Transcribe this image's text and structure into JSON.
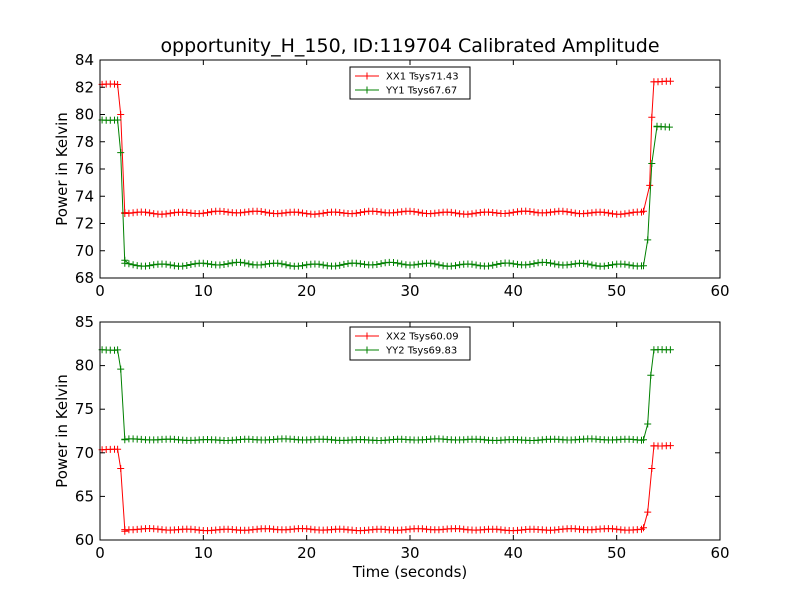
{
  "chart_data": {
    "title": "opportunity_H_150, ID:119704 Calibrated Amplitude",
    "xlabel": "Time (seconds)",
    "panels": [
      {
        "type": "line",
        "ylabel": "Power in Kelvin",
        "xlim": [
          0,
          60
        ],
        "ylim": [
          68,
          84
        ],
        "xticks": [
          0,
          10,
          20,
          30,
          40,
          50,
          60
        ],
        "yticks": [
          68,
          70,
          72,
          74,
          76,
          78,
          80,
          82,
          84
        ],
        "legend_position": "top-center",
        "series": [
          {
            "name": "XX1 Tsys71.43",
            "color": "#ff0000",
            "segments": [
              {
                "x0": 0.2,
                "x1": 1.7,
                "base": 82.2,
                "amp": 0.05
              },
              {
                "x0": 2.4,
                "x1": 52.6,
                "base": 72.8,
                "amp": 0.12
              },
              {
                "x0": 53.6,
                "x1": 55.3,
                "base": 82.4,
                "amp": 0.05
              }
            ],
            "transitions": [
              [
                1.7,
                82.2,
                2.0,
                80.0
              ],
              [
                2.0,
                80.0,
                2.4,
                72.8
              ],
              [
                52.6,
                72.9,
                53.2,
                74.8
              ],
              [
                53.2,
                74.8,
                53.4,
                79.8
              ],
              [
                53.4,
                79.8,
                53.6,
                82.4
              ]
            ]
          },
          {
            "name": "YY1 Tsys67.67",
            "color": "#008000",
            "segments": [
              {
                "x0": 0.2,
                "x1": 1.7,
                "base": 79.6,
                "amp": 0.05
              },
              {
                "x0": 2.4,
                "x1": 52.6,
                "base": 69.0,
                "amp": 0.15
              },
              {
                "x0": 53.9,
                "x1": 55.3,
                "base": 79.1,
                "amp": 0.05
              }
            ],
            "transitions": [
              [
                1.7,
                79.6,
                2.0,
                77.2
              ],
              [
                2.0,
                77.2,
                2.4,
                69.3
              ],
              [
                52.6,
                68.9,
                53.0,
                70.8
              ],
              [
                53.0,
                70.8,
                53.4,
                76.4
              ],
              [
                53.4,
                76.4,
                53.9,
                79.1
              ]
            ]
          }
        ]
      },
      {
        "type": "line",
        "ylabel": "Power in Kelvin",
        "xlim": [
          0,
          60
        ],
        "ylim": [
          60,
          85
        ],
        "xticks": [
          0,
          10,
          20,
          30,
          40,
          50,
          60
        ],
        "yticks": [
          60,
          65,
          70,
          75,
          80,
          85
        ],
        "legend_position": "top-center",
        "series": [
          {
            "name": "XX2 Tsys60.09",
            "color": "#ff0000",
            "segments": [
              {
                "x0": 0.2,
                "x1": 1.7,
                "base": 70.4,
                "amp": 0.05
              },
              {
                "x0": 2.4,
                "x1": 52.6,
                "base": 61.2,
                "amp": 0.12
              },
              {
                "x0": 53.6,
                "x1": 55.3,
                "base": 70.8,
                "amp": 0.05
              }
            ],
            "transitions": [
              [
                1.7,
                70.4,
                2.0,
                68.2
              ],
              [
                2.0,
                68.2,
                2.4,
                61.0
              ],
              [
                52.6,
                61.4,
                53.0,
                63.2
              ],
              [
                53.0,
                63.2,
                53.4,
                68.2
              ],
              [
                53.4,
                68.2,
                53.6,
                70.8
              ]
            ]
          },
          {
            "name": "YY2 Tsys69.83",
            "color": "#008000",
            "segments": [
              {
                "x0": 0.2,
                "x1": 1.7,
                "base": 81.8,
                "amp": 0.05
              },
              {
                "x0": 2.4,
                "x1": 52.6,
                "base": 71.5,
                "amp": 0.1
              },
              {
                "x0": 53.6,
                "x1": 55.3,
                "base": 81.8,
                "amp": 0.05
              }
            ],
            "transitions": [
              [
                1.7,
                81.8,
                2.0,
                79.6
              ],
              [
                2.0,
                79.6,
                2.4,
                71.5
              ],
              [
                52.6,
                71.5,
                53.0,
                73.3
              ],
              [
                53.0,
                73.3,
                53.3,
                78.9
              ],
              [
                53.3,
                78.9,
                53.6,
                81.8
              ]
            ]
          }
        ]
      }
    ]
  }
}
